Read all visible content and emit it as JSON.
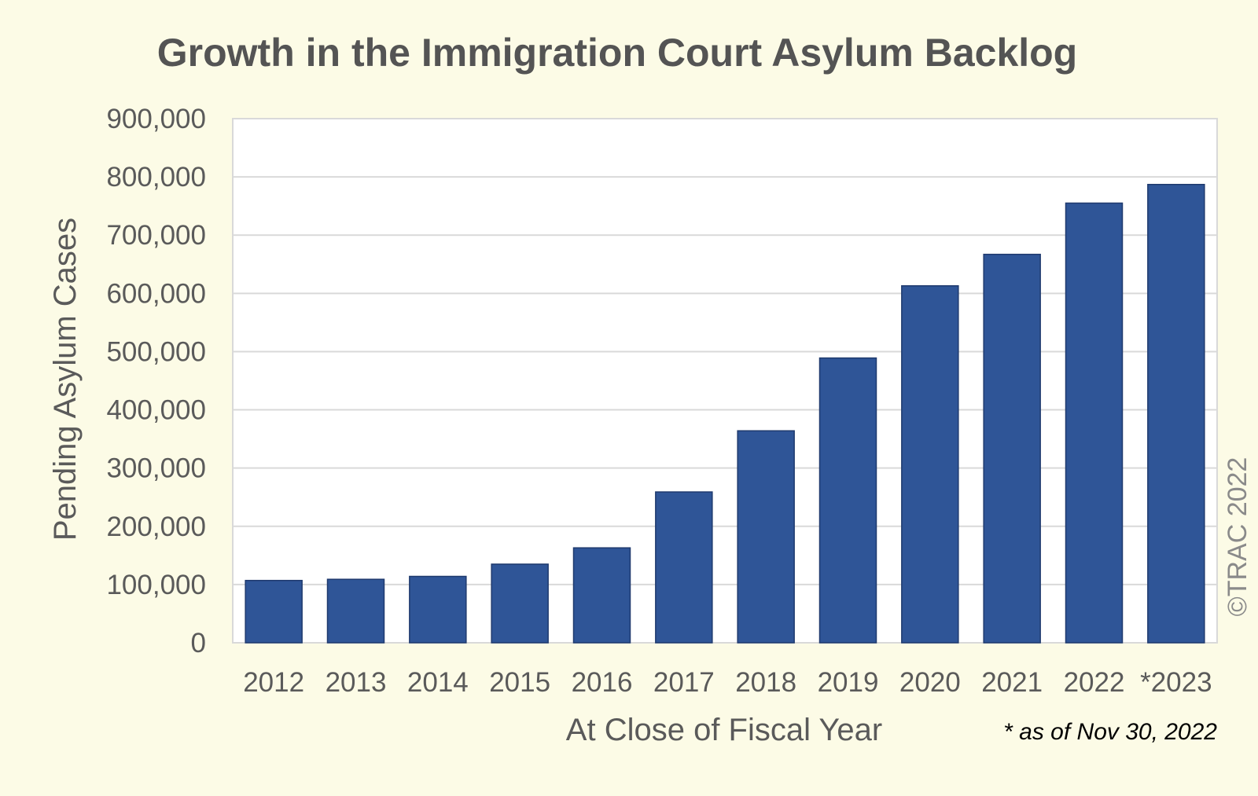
{
  "chart_data": {
    "type": "bar",
    "title": "Growth in the Immigration Court Asylum Backlog",
    "xlabel": "At Close of Fiscal Year",
    "ylabel": "Pending Asylum Cases",
    "categories": [
      "2012",
      "2013",
      "2014",
      "2015",
      "2016",
      "2017",
      "2018",
      "2019",
      "2020",
      "2021",
      "2022",
      "*2023"
    ],
    "values": [
      107000,
      109000,
      114000,
      135000,
      163000,
      259000,
      364000,
      489000,
      613000,
      667000,
      755000,
      787000
    ],
    "ylim": [
      0,
      900000
    ],
    "yticks": [
      0,
      100000,
      200000,
      300000,
      400000,
      500000,
      600000,
      700000,
      800000,
      900000
    ],
    "ytick_labels": [
      "0",
      "100,000",
      "200,000",
      "300,000",
      "400,000",
      "500,000",
      "600,000",
      "700,000",
      "800,000",
      "900,000"
    ],
    "grid": true,
    "legend": "none",
    "bar_color": "#2f5597",
    "footnote": "* as of Nov 30, 2022",
    "copyright": "©TRAC 2022"
  },
  "colors": {
    "background": "#fcfbe6",
    "plot_background": "#ffffff",
    "gridline": "#d9d9d9",
    "text": "#5a5a5a"
  }
}
